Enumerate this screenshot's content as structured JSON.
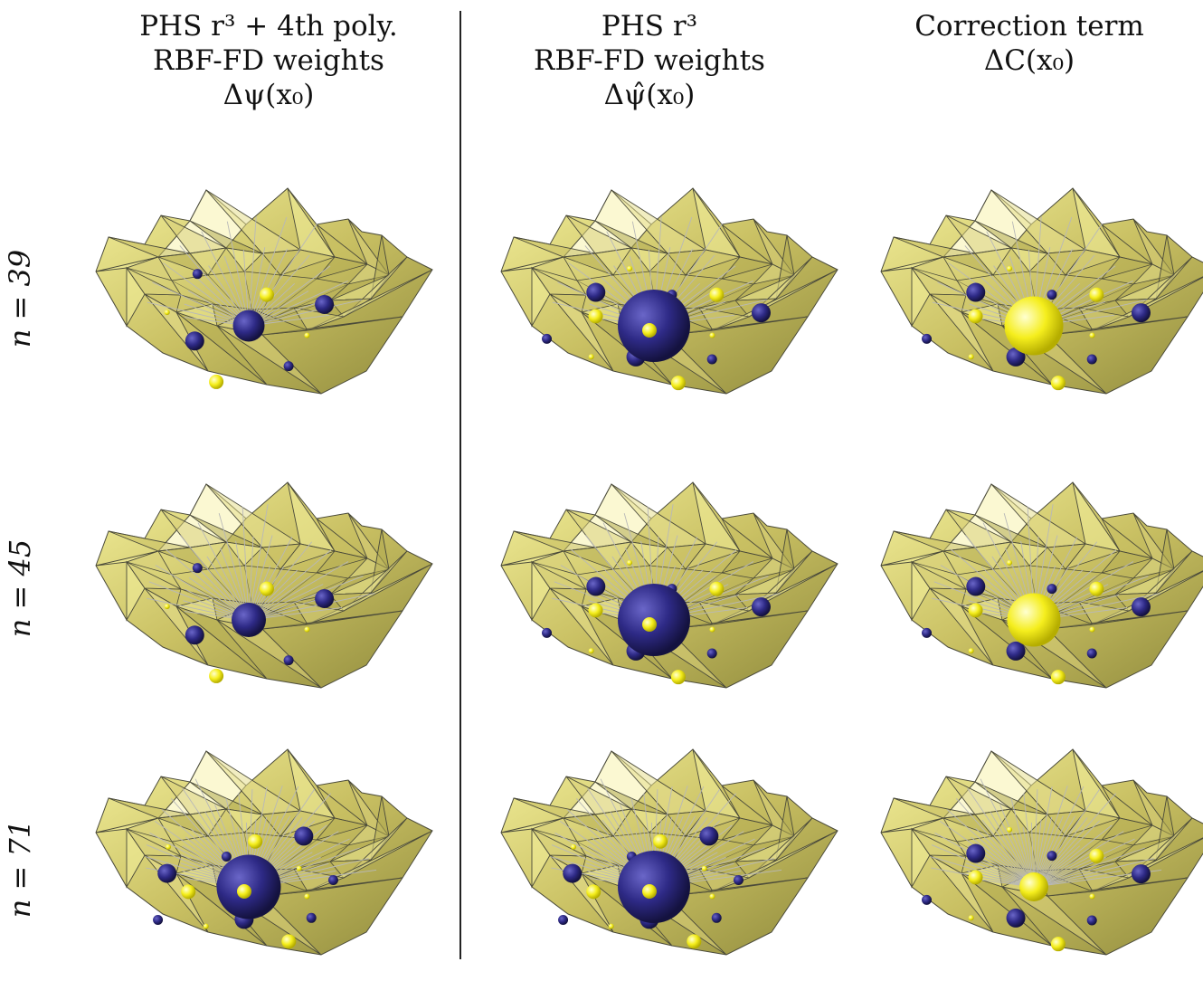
{
  "columns": [
    {
      "title_line1": "PHS r³ + 4th poly.",
      "title_line2": "RBF-FD weights",
      "title_line3": "Δψ(x₀)"
    },
    {
      "title_line1": "PHS r³",
      "title_line2": "RBF-FD weights",
      "title_line3": "Δψ̂(x₀)"
    },
    {
      "title_line1": "Correction term",
      "title_line2": "ΔC(x₀)",
      "title_line3": ""
    }
  ],
  "rows": [
    {
      "label": "n = 39"
    },
    {
      "label": "n = 45"
    },
    {
      "label": "n = 71"
    }
  ],
  "colors": {
    "surface_light": "#f3ef9a",
    "surface_mid": "#c9c063",
    "surface_dark": "#8f8a3c",
    "edge": "#4a4a3a",
    "positive_sphere": "#f5ee1d",
    "negative_sphere": "#2e2a86",
    "stencil_line": "#b8b8b8"
  },
  "panels": [
    {
      "row": 0,
      "col": 0,
      "center": {
        "sign": "negative",
        "size": 0.25
      },
      "satellites": 8,
      "lines": 26
    },
    {
      "row": 0,
      "col": 1,
      "center": {
        "sign": "negative",
        "size": 1.0
      },
      "satellites": 12,
      "lines": 26
    },
    {
      "row": 0,
      "col": 2,
      "center": {
        "sign": "positive",
        "size": 0.75
      },
      "satellites": 12,
      "lines": 26
    },
    {
      "row": 1,
      "col": 0,
      "center": {
        "sign": "negative",
        "size": 0.3
      },
      "satellites": 8,
      "lines": 32
    },
    {
      "row": 1,
      "col": 1,
      "center": {
        "sign": "negative",
        "size": 1.0
      },
      "satellites": 12,
      "lines": 32
    },
    {
      "row": 1,
      "col": 2,
      "center": {
        "sign": "positive",
        "size": 0.65
      },
      "satellites": 12,
      "lines": 32
    },
    {
      "row": 2,
      "col": 0,
      "center": {
        "sign": "negative",
        "size": 0.85
      },
      "satellites": 14,
      "lines": 48
    },
    {
      "row": 2,
      "col": 1,
      "center": {
        "sign": "negative",
        "size": 1.0
      },
      "satellites": 14,
      "lines": 48
    },
    {
      "row": 2,
      "col": 2,
      "center": {
        "sign": "positive",
        "size": 0.2
      },
      "satellites": 12,
      "lines": 48
    }
  ]
}
